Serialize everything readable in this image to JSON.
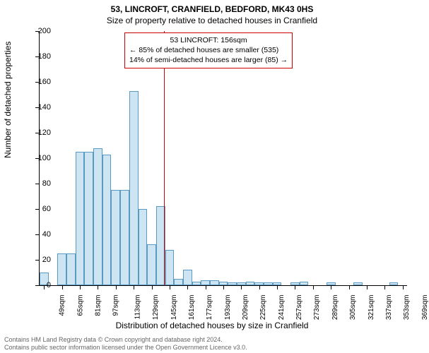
{
  "title_line1": "53, LINCROFT, CRANFIELD, BEDFORD, MK43 0HS",
  "title_line2": "Size of property relative to detached houses in Cranfield",
  "ylabel": "Number of detached properties",
  "xlabel": "Distribution of detached houses by size in Cranfield",
  "chart": {
    "type": "histogram",
    "ylim": [
      0,
      200
    ],
    "ytick_step": 20,
    "xticks": [
      49,
      65,
      81,
      97,
      113,
      129,
      145,
      161,
      177,
      193,
      209,
      225,
      241,
      257,
      273,
      289,
      305,
      321,
      337,
      353,
      369
    ],
    "xtick_suffix": "sqm",
    "bar_fill": "#cde5f3",
    "bar_stroke": "#5a99c2",
    "background": "#ffffff",
    "axis_color": "#000000",
    "bars": [
      {
        "x": 49,
        "h": 10
      },
      {
        "x": 57,
        "h": 0
      },
      {
        "x": 65,
        "h": 25
      },
      {
        "x": 73,
        "h": 25
      },
      {
        "x": 81,
        "h": 105
      },
      {
        "x": 89,
        "h": 105
      },
      {
        "x": 97,
        "h": 108
      },
      {
        "x": 105,
        "h": 103
      },
      {
        "x": 113,
        "h": 75
      },
      {
        "x": 121,
        "h": 75
      },
      {
        "x": 129,
        "h": 153
      },
      {
        "x": 137,
        "h": 60
      },
      {
        "x": 145,
        "h": 32
      },
      {
        "x": 153,
        "h": 62
      },
      {
        "x": 161,
        "h": 28
      },
      {
        "x": 169,
        "h": 5
      },
      {
        "x": 177,
        "h": 12
      },
      {
        "x": 185,
        "h": 3
      },
      {
        "x": 193,
        "h": 4
      },
      {
        "x": 201,
        "h": 4
      },
      {
        "x": 209,
        "h": 3
      },
      {
        "x": 217,
        "h": 2
      },
      {
        "x": 225,
        "h": 2
      },
      {
        "x": 233,
        "h": 3
      },
      {
        "x": 241,
        "h": 2
      },
      {
        "x": 249,
        "h": 2
      },
      {
        "x": 257,
        "h": 2
      },
      {
        "x": 265,
        "h": 0
      },
      {
        "x": 273,
        "h": 2
      },
      {
        "x": 281,
        "h": 3
      },
      {
        "x": 289,
        "h": 0
      },
      {
        "x": 297,
        "h": 0
      },
      {
        "x": 305,
        "h": 2
      },
      {
        "x": 313,
        "h": 0
      },
      {
        "x": 321,
        "h": 0
      },
      {
        "x": 329,
        "h": 2
      },
      {
        "x": 337,
        "h": 0
      },
      {
        "x": 345,
        "h": 0
      },
      {
        "x": 353,
        "h": 0
      },
      {
        "x": 361,
        "h": 2
      }
    ],
    "bar_bin_width": 8,
    "x_domain": [
      45,
      373
    ]
  },
  "reference_line": {
    "x_value": 156,
    "color": "#cc0000"
  },
  "annotation": {
    "border_color": "#cc0000",
    "lines": [
      "53 LINCROFT: 156sqm",
      "← 85% of detached houses are smaller (535)",
      "14% of semi-detached houses are larger (85) →"
    ]
  },
  "footer_line1": "Contains HM Land Registry data © Crown copyright and database right 2024.",
  "footer_line2": "Contains public sector information licensed under the Open Government Licence v3.0.",
  "fonts": {
    "title": 12,
    "axis_label": 12,
    "tick": 11,
    "xtick": 10,
    "annotation": 10.5,
    "footer": 9
  }
}
